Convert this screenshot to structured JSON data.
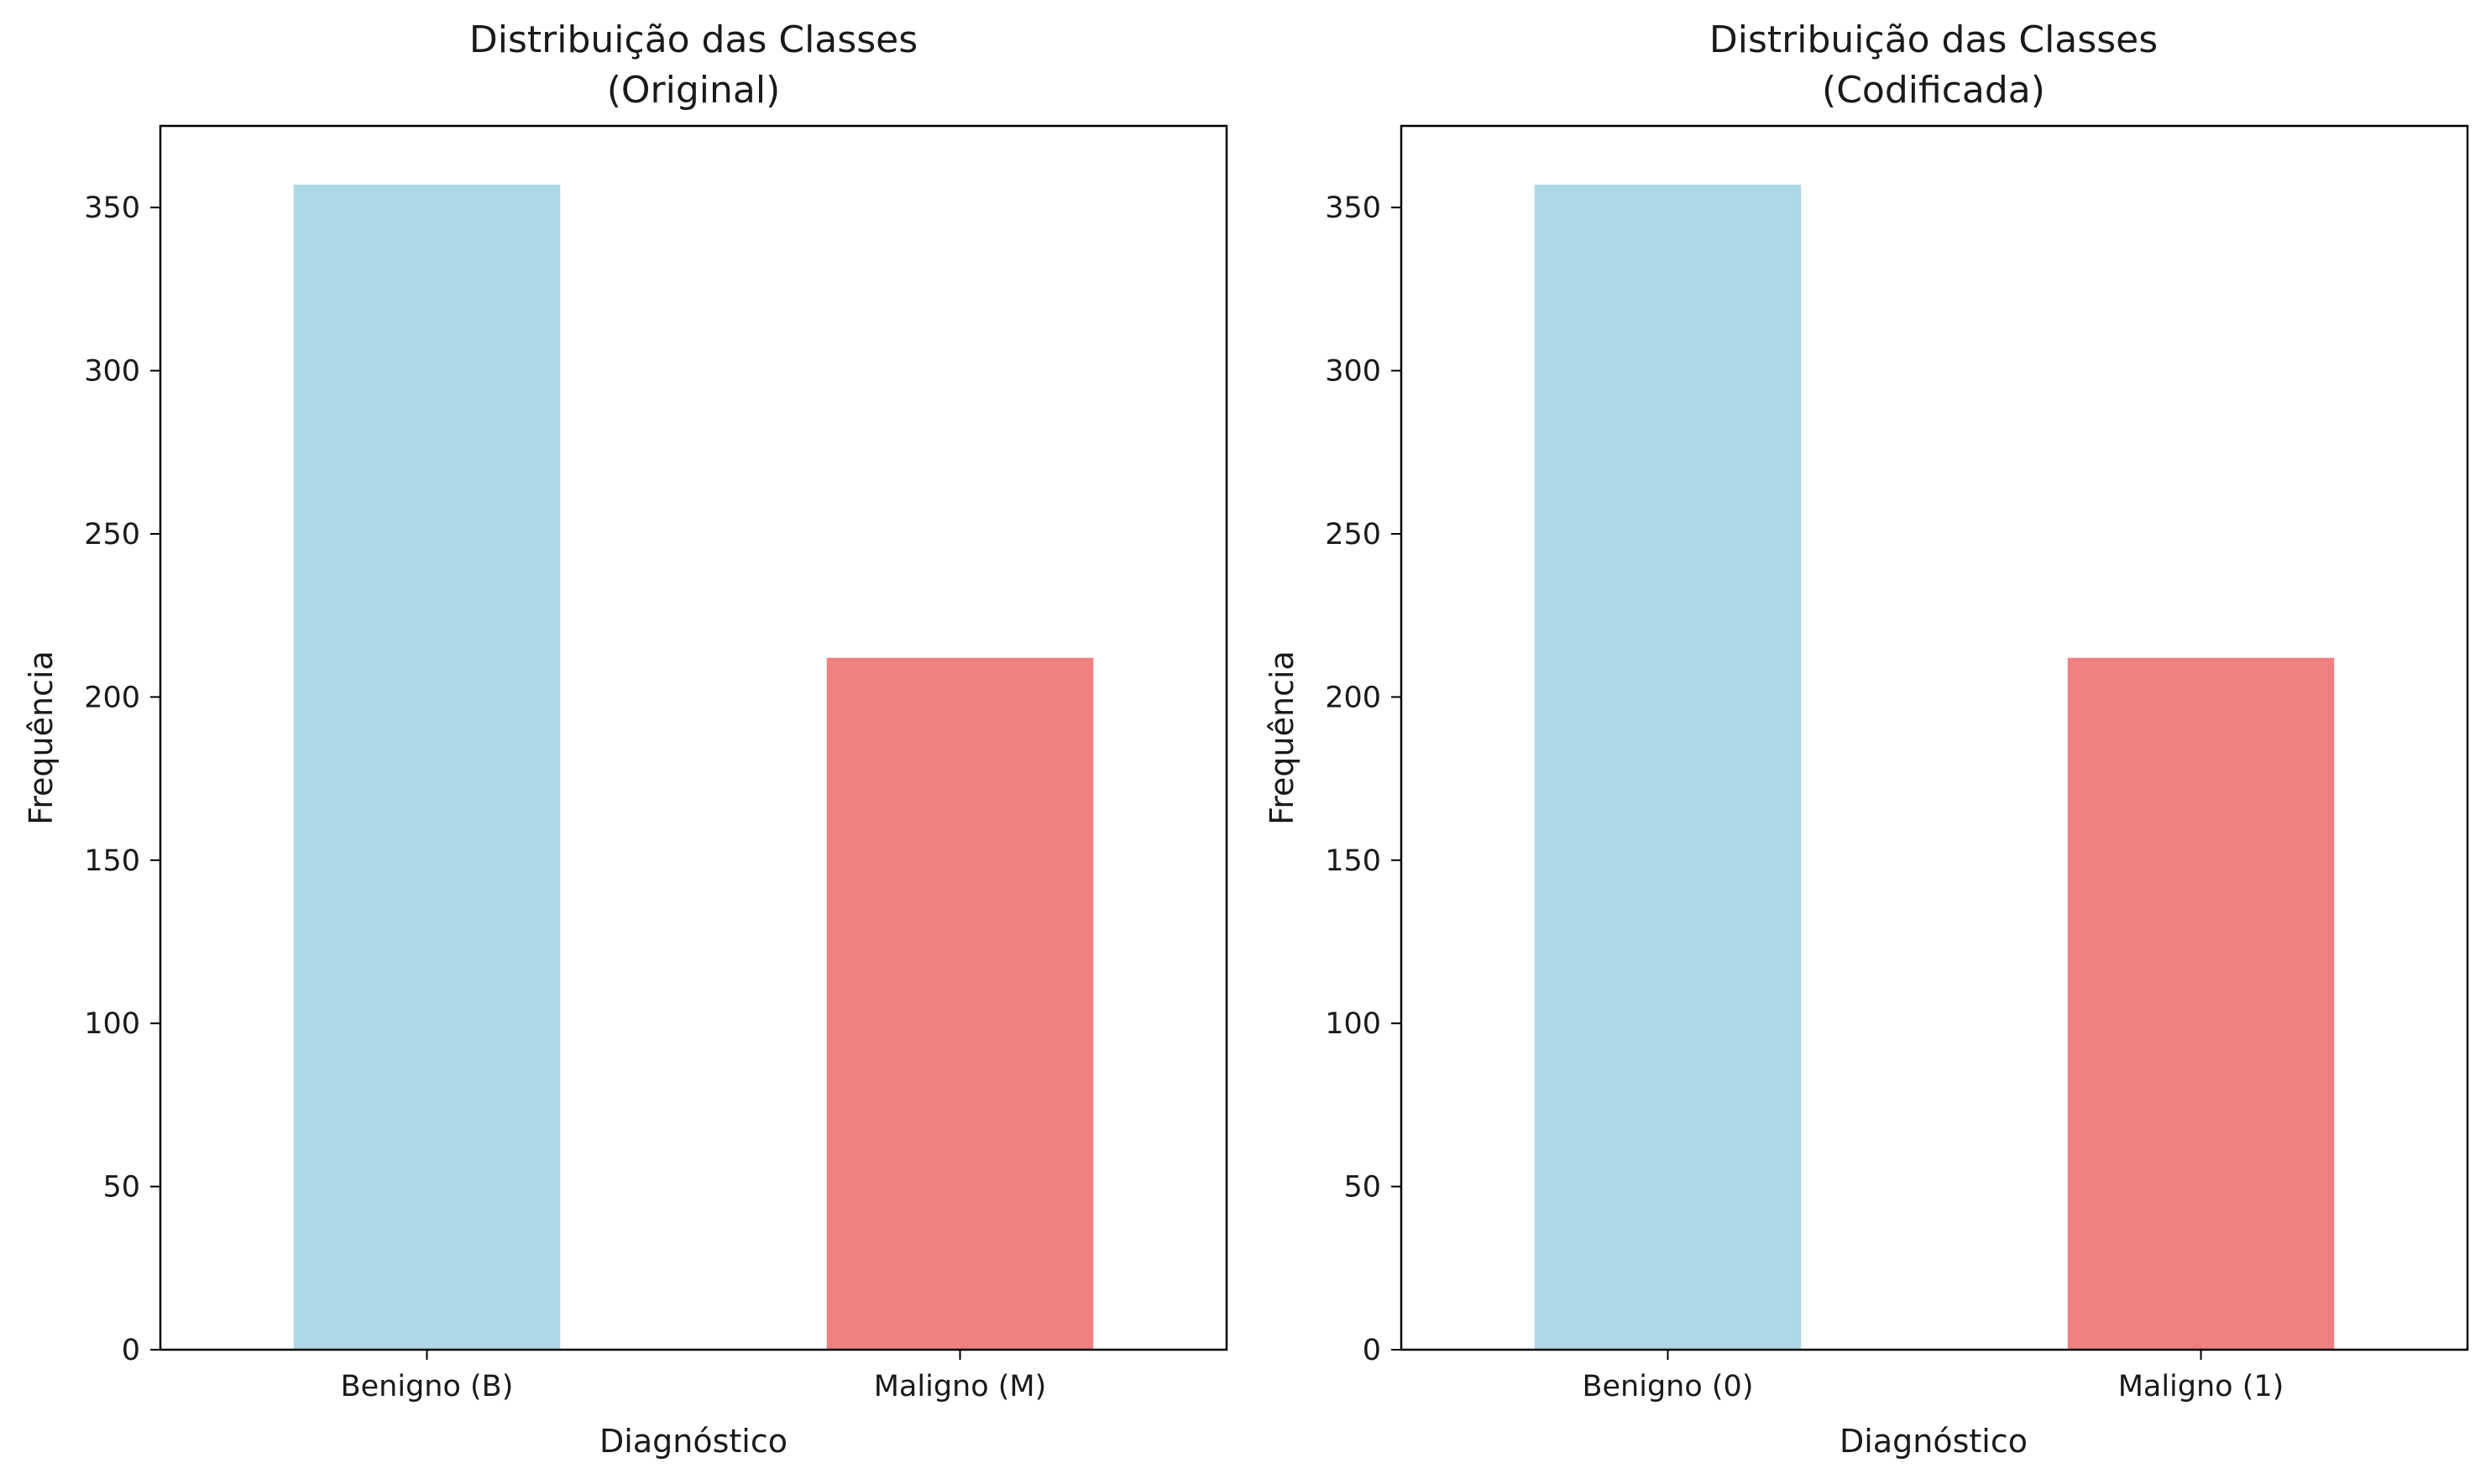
{
  "colors": {
    "benign": "#add8e6",
    "malignant": "#f08080",
    "axis": "#000000",
    "background": "#ffffff"
  },
  "chart_data": [
    {
      "type": "bar",
      "title": [
        "Distribuição das Classes",
        "(Original)"
      ],
      "xlabel": "Diagnóstico",
      "ylabel": "Frequência",
      "categories": [
        "Benigno (B)",
        "Maligno (M)"
      ],
      "values": [
        357,
        212
      ],
      "colors": [
        "#add8e6",
        "#f08080"
      ],
      "ylim": [
        0,
        375
      ],
      "yticks": [
        0,
        50,
        100,
        150,
        200,
        250,
        300,
        350
      ],
      "grid": false
    },
    {
      "type": "bar",
      "title": [
        "Distribuição das Classes",
        "(Codificada)"
      ],
      "xlabel": "Diagnóstico",
      "ylabel": "Frequência",
      "categories": [
        "Benigno (0)",
        "Maligno (1)"
      ],
      "values": [
        357,
        212
      ],
      "colors": [
        "#add8e6",
        "#f08080"
      ],
      "ylim": [
        0,
        375
      ],
      "yticks": [
        0,
        50,
        100,
        150,
        200,
        250,
        300,
        350
      ],
      "grid": false
    }
  ]
}
